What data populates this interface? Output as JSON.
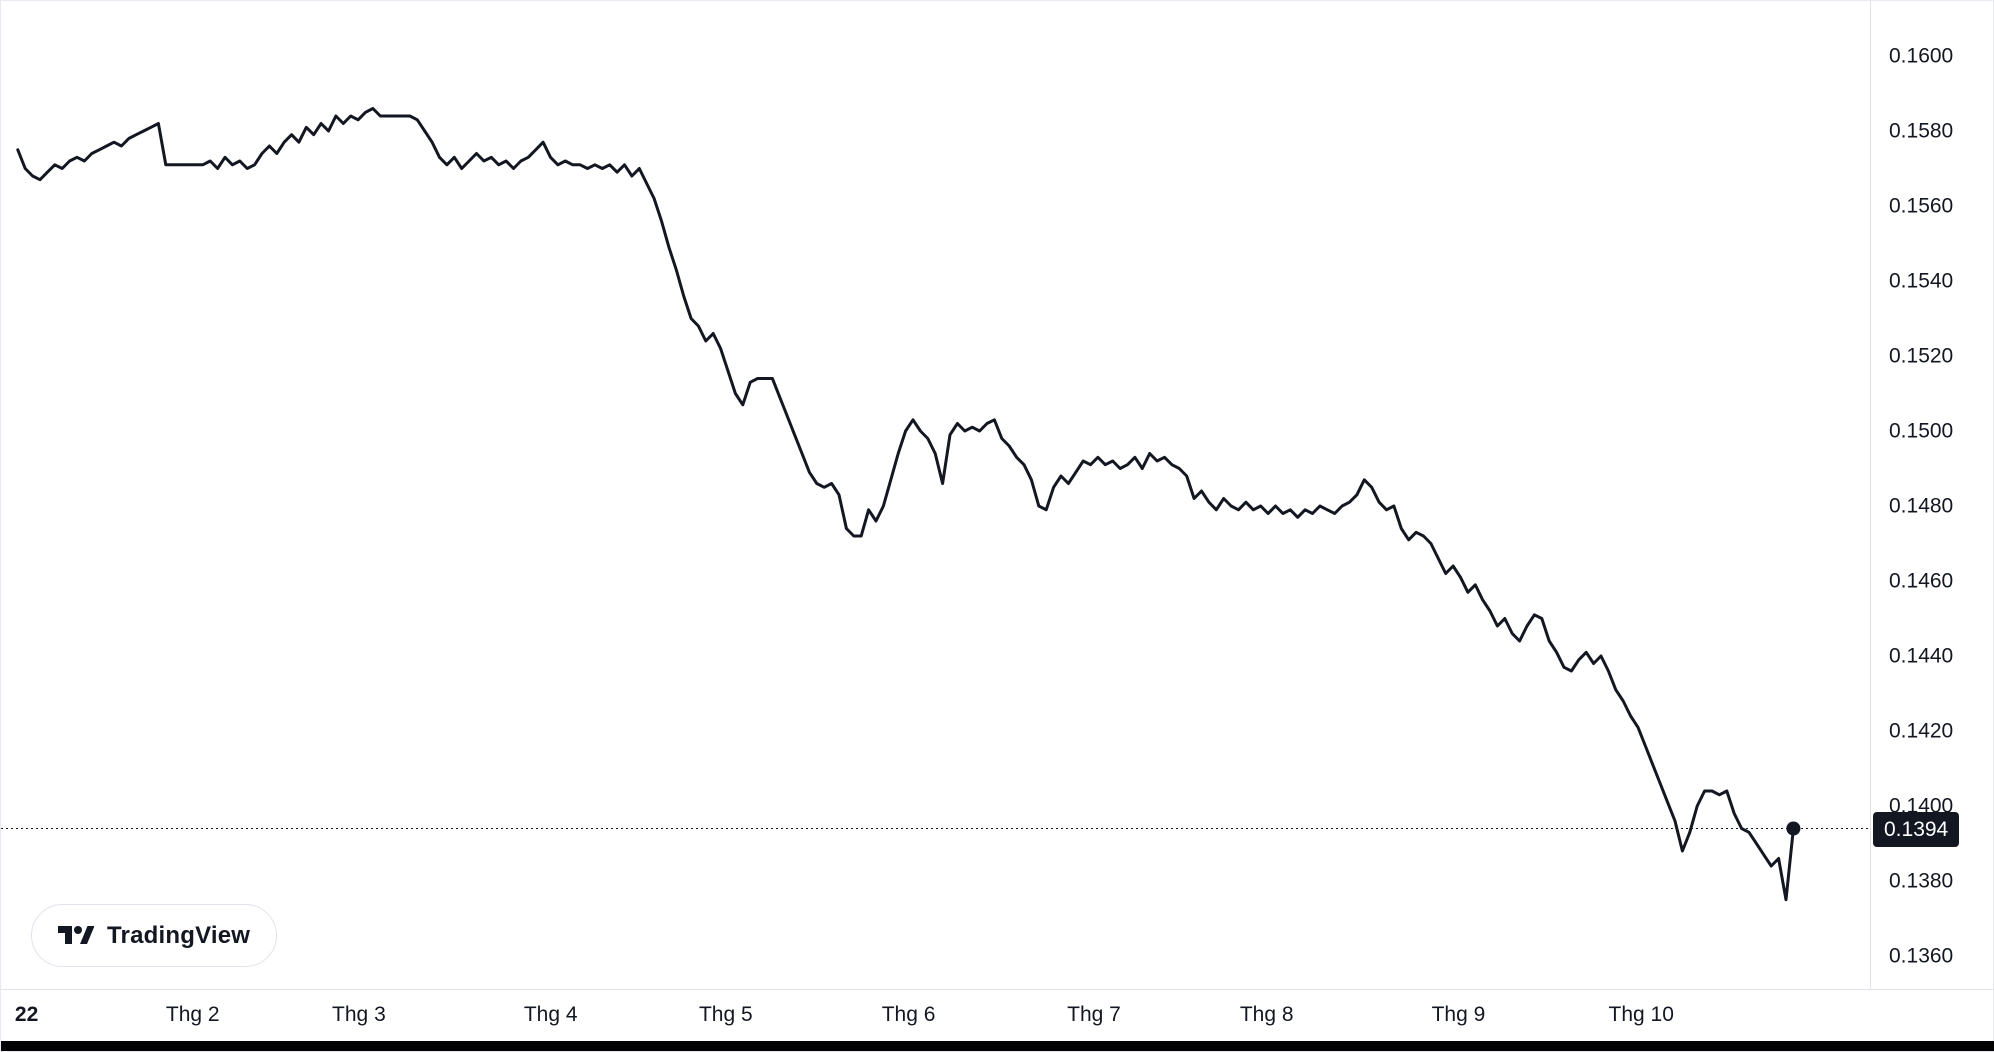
{
  "branding": {
    "logo_text": "TradingView"
  },
  "colors": {
    "line": "#131722",
    "axis_text": "#131722",
    "separator": "#e0e3eb",
    "badge_bg": "#131722",
    "badge_text": "#ffffff"
  },
  "chart_data": {
    "type": "line",
    "legend_position": "none",
    "grid": false,
    "line_color": "#131722",
    "y_ticks": [
      "0.1600",
      "0.1580",
      "0.1560",
      "0.1540",
      "0.1520",
      "0.1500",
      "0.1480",
      "0.1460",
      "0.1440",
      "0.1420",
      "0.1400",
      "0.1380",
      "0.1360"
    ],
    "ylim": [
      0.136,
      0.16
    ],
    "x_ticks": [
      {
        "label": "22",
        "f": 0.0137,
        "bold": true
      },
      {
        "label": "Thg 2",
        "f": 0.1026
      },
      {
        "label": "Thg 3",
        "f": 0.1915
      },
      {
        "label": "Thg 4",
        "f": 0.2941
      },
      {
        "label": "Thg 5",
        "f": 0.3878
      },
      {
        "label": "Thg 6",
        "f": 0.4856
      },
      {
        "label": "Thg 7",
        "f": 0.5848
      },
      {
        "label": "Thg 8",
        "f": 0.6772
      },
      {
        "label": "Thg 9",
        "f": 0.7798
      },
      {
        "label": "Thg 10",
        "f": 0.8776
      }
    ],
    "x_range": [
      0.009,
      0.959
    ],
    "last_price": 0.1394,
    "last_price_label": "0.1394",
    "prices": [
      0.1575,
      0.157,
      0.1568,
      0.1567,
      0.1569,
      0.1571,
      0.157,
      0.1572,
      0.1573,
      0.1572,
      0.1574,
      0.1575,
      0.1576,
      0.1577,
      0.1576,
      0.1578,
      0.1579,
      0.158,
      0.1581,
      0.1582,
      0.1571,
      0.1571,
      0.1571,
      0.1571,
      0.1571,
      0.1571,
      0.1572,
      0.157,
      0.1573,
      0.1571,
      0.1572,
      0.157,
      0.1571,
      0.1574,
      0.1576,
      0.1574,
      0.1577,
      0.1579,
      0.1577,
      0.1581,
      0.1579,
      0.1582,
      0.158,
      0.1584,
      0.1582,
      0.1584,
      0.1583,
      0.1585,
      0.1586,
      0.1584,
      0.1584,
      0.1584,
      0.1584,
      0.1584,
      0.1583,
      0.158,
      0.1577,
      0.1573,
      0.1571,
      0.1573,
      0.157,
      0.1572,
      0.1574,
      0.1572,
      0.1573,
      0.1571,
      0.1572,
      0.157,
      0.1572,
      0.1573,
      0.1575,
      0.1577,
      0.1573,
      0.1571,
      0.1572,
      0.1571,
      0.1571,
      0.157,
      0.1571,
      0.157,
      0.1571,
      0.1569,
      0.1571,
      0.1568,
      0.157,
      0.1566,
      0.1562,
      0.1556,
      0.1549,
      0.1543,
      0.1536,
      0.153,
      0.1528,
      0.1524,
      0.1526,
      0.1522,
      0.1516,
      0.151,
      0.1507,
      0.1513,
      0.1514,
      0.1514,
      0.1514,
      0.1509,
      0.1504,
      0.1499,
      0.1494,
      0.1489,
      0.1486,
      0.1485,
      0.1486,
      0.1483,
      0.1474,
      0.1472,
      0.1472,
      0.1479,
      0.1476,
      0.148,
      0.1487,
      0.1494,
      0.15,
      0.1503,
      0.15,
      0.1498,
      0.1494,
      0.1486,
      0.1499,
      0.1502,
      0.15,
      0.1501,
      0.15,
      0.1502,
      0.1503,
      0.1498,
      0.1496,
      0.1493,
      0.1491,
      0.1487,
      0.148,
      0.1479,
      0.1485,
      0.1488,
      0.1486,
      0.1489,
      0.1492,
      0.1491,
      0.1493,
      0.1491,
      0.1492,
      0.149,
      0.1491,
      0.1493,
      0.149,
      0.1494,
      0.1492,
      0.1493,
      0.1491,
      0.149,
      0.1488,
      0.1482,
      0.1484,
      0.1481,
      0.1479,
      0.1482,
      0.148,
      0.1479,
      0.1481,
      0.1479,
      0.148,
      0.1478,
      0.148,
      0.1478,
      0.1479,
      0.1477,
      0.1479,
      0.1478,
      0.148,
      0.1479,
      0.1478,
      0.148,
      0.1481,
      0.1483,
      0.1487,
      0.1485,
      0.1481,
      0.1479,
      0.148,
      0.1474,
      0.1471,
      0.1473,
      0.1472,
      0.147,
      0.1466,
      0.1462,
      0.1464,
      0.1461,
      0.1457,
      0.1459,
      0.1455,
      0.1452,
      0.1448,
      0.145,
      0.1446,
      0.1444,
      0.1448,
      0.1451,
      0.145,
      0.1444,
      0.1441,
      0.1437,
      0.1436,
      0.1439,
      0.1441,
      0.1438,
      0.144,
      0.1436,
      0.1431,
      0.1428,
      0.1424,
      0.1421,
      0.1416,
      0.1411,
      0.1406,
      0.1401,
      0.1396,
      0.1388,
      0.1393,
      0.14,
      0.1404,
      0.1404,
      0.1403,
      0.1404,
      0.1398,
      0.1394,
      0.1393,
      0.139,
      0.1387,
      0.1384,
      0.1386,
      0.1375,
      0.1394
    ]
  }
}
